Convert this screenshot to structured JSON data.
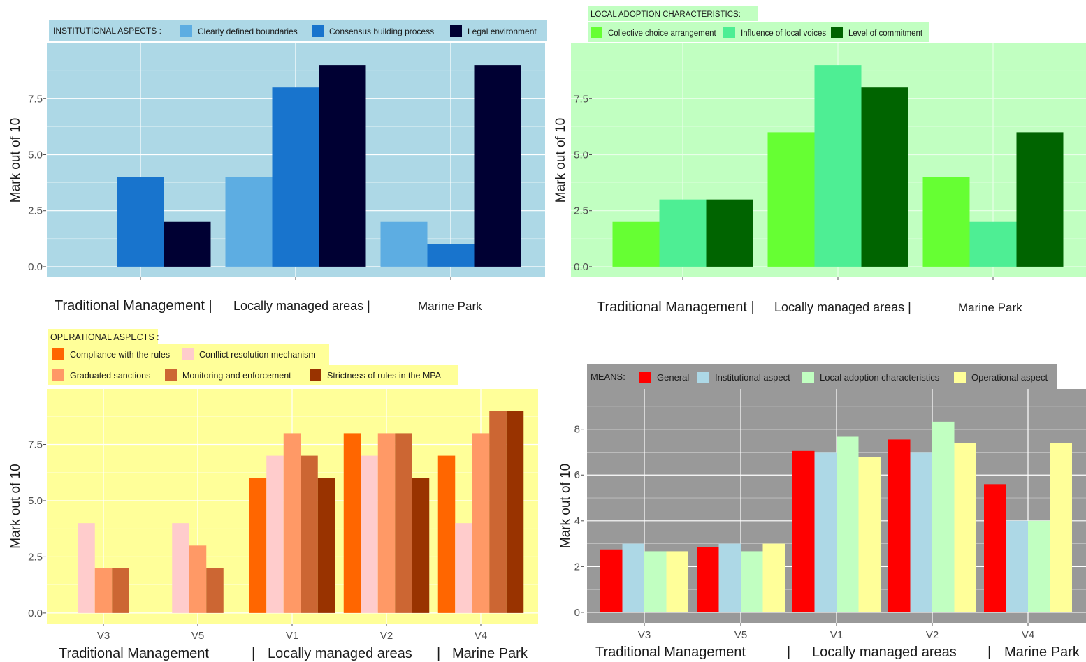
{
  "chart_data": [
    {
      "type": "bar",
      "legend_title": "INSTITUTIONAL ASPECTS :",
      "legend_position": "top",
      "panel_bg": "#add8e6",
      "ylabel": "Mark out of 10",
      "ylim": [
        0,
        9.5
      ],
      "y_ticks": [
        "0.0",
        "2.5",
        "5.0",
        "7.5"
      ],
      "categories": [
        "",
        "",
        ""
      ],
      "group_labels": [
        "Traditional Management |",
        "Locally managed areas |",
        "Marine Park"
      ],
      "series": [
        {
          "name": "Clearly defined boundaries",
          "color": "#5dade2",
          "values": [
            0,
            4,
            2
          ]
        },
        {
          "name": "Consensus building process",
          "color": "#1874cd",
          "values": [
            4,
            8,
            1
          ]
        },
        {
          "name": "Legal environment",
          "color": "#000033",
          "values": [
            2,
            9,
            9
          ]
        }
      ]
    },
    {
      "type": "bar",
      "legend_title": "LOCAL ADOPTION CHARACTERISTICS:",
      "legend_position": "top",
      "panel_bg": "#c1ffc1",
      "ylabel": "Mark out of 10",
      "ylim": [
        0,
        9.5
      ],
      "y_ticks": [
        "0.0",
        "2.5",
        "5.0",
        "7.5"
      ],
      "categories": [
        "",
        "",
        ""
      ],
      "group_labels": [
        "Traditional Management |",
        "Locally managed areas |",
        "Marine Park"
      ],
      "series": [
        {
          "name": "Collective choice arrangement",
          "color": "#66ff33",
          "values": [
            2,
            6,
            4
          ]
        },
        {
          "name": "Influence of local voices",
          "color": "#4eee94",
          "values": [
            3,
            9,
            2
          ]
        },
        {
          "name": "Level of commitment",
          "color": "#006400",
          "values": [
            3,
            8,
            6
          ]
        }
      ]
    },
    {
      "type": "bar",
      "legend_title": "OPERATIONAL ASPECTS :",
      "legend_position": "top",
      "panel_bg": "#ffff99",
      "ylabel": "Mark out of 10",
      "ylim": [
        0,
        9.5
      ],
      "y_ticks": [
        "0.0",
        "2.5",
        "5.0",
        "7.5"
      ],
      "categories": [
        "V3",
        "V5",
        "V1",
        "V2",
        "V4"
      ],
      "group_labels": [
        "Traditional Management",
        "|",
        "Locally managed areas",
        "|",
        "Marine Park"
      ],
      "series": [
        {
          "name": "Compliance with the rules",
          "color": "#ff6600",
          "values": [
            0,
            0,
            6,
            8,
            7
          ]
        },
        {
          "name": "Conflict resolution mechanism",
          "color": "#ffcccc",
          "values": [
            4,
            4,
            7,
            7,
            4
          ]
        },
        {
          "name": "Graduated sanctions",
          "color": "#ff9966",
          "values": [
            2,
            3,
            8,
            8,
            8
          ]
        },
        {
          "name": "Monitoring and enforcement",
          "color": "#cc6633",
          "values": [
            2,
            2,
            7,
            8,
            9
          ]
        },
        {
          "name": "Strictness of rules in the MPA",
          "color": "#993300",
          "values": [
            0,
            0,
            6,
            6,
            9
          ]
        }
      ]
    },
    {
      "type": "bar",
      "legend_title": "MEANS:",
      "legend_position": "top",
      "panel_bg": "#999999",
      "ylabel": "Mark out of 10",
      "ylim": [
        0,
        9.3
      ],
      "y_ticks": [
        "0",
        "2",
        "4",
        "6",
        "8"
      ],
      "categories": [
        "V3",
        "V5",
        "V1",
        "V2",
        "V4"
      ],
      "group_labels": [
        "Traditional Management",
        "|",
        "Locally managed areas",
        "|",
        "Marine Park"
      ],
      "series": [
        {
          "name": "General",
          "color": "#ff0000",
          "values": [
            2.75,
            2.85,
            7.05,
            7.55,
            5.6
          ]
        },
        {
          "name": "Institutional aspect",
          "color": "#add8e6",
          "values": [
            3.0,
            3.0,
            7.0,
            7.0,
            4.0
          ]
        },
        {
          "name": "Local adoption characteristics",
          "color": "#c1ffc1",
          "values": [
            2.67,
            2.67,
            7.67,
            8.33,
            4.0
          ]
        },
        {
          "name": "Operational aspect",
          "color": "#ffff99",
          "values": [
            2.67,
            3.0,
            6.8,
            7.4,
            7.4
          ]
        }
      ]
    }
  ]
}
